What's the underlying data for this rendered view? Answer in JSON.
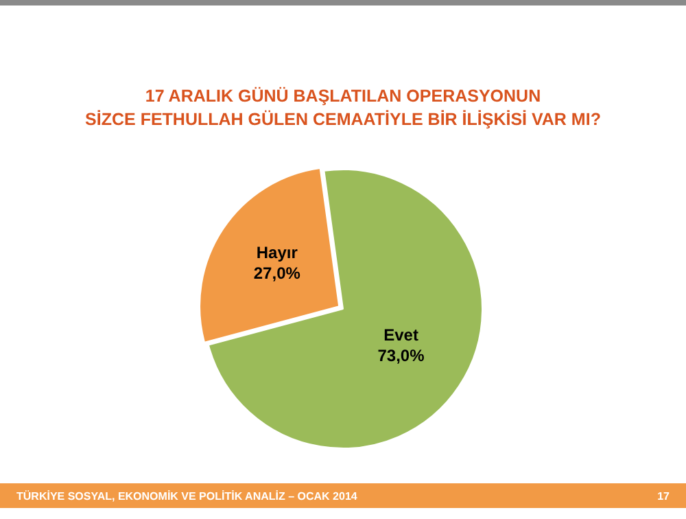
{
  "chart_data": {
    "type": "pie",
    "title": "17 ARALIK GÜNÜ BAŞLATILAN OPERASYONUN\nSİZCE FETHULLAH GÜLEN CEMAATİYLE BİR İLİŞKİSİ VAR MI?",
    "categories": [
      "Hayır",
      "Evet"
    ],
    "values": [
      27,
      73
    ],
    "colors": [
      "#f29a45",
      "#9bbb59"
    ],
    "value_labels": [
      "27,0%",
      "73,0%"
    ],
    "legend": false,
    "annotations": [
      "TÜRKİYE SOSYAL, EKONOMİK VE POLİTİK ANALİZ – OCAK 2014",
      "17"
    ]
  }
}
